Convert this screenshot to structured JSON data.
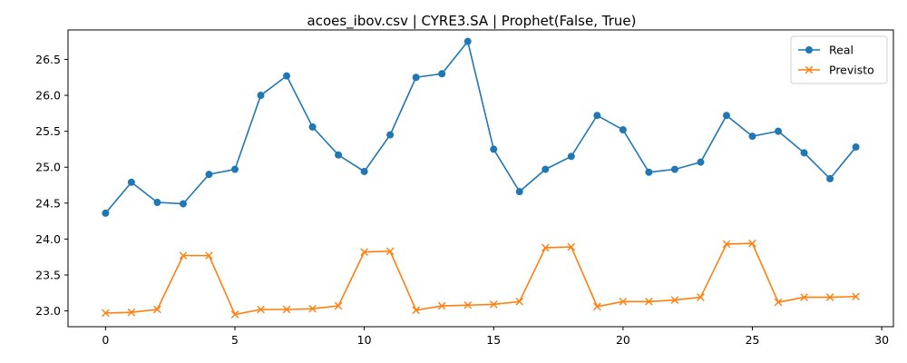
{
  "chart_data": {
    "type": "line",
    "title": "acoes_ibov.csv | CYRE3.SA | Prophet(False, True)",
    "xlabel": "",
    "ylabel": "",
    "xlim": [
      -1.45,
      30.45
    ],
    "ylim": [
      22.78,
      26.91
    ],
    "xticks": [
      0,
      5,
      10,
      15,
      20,
      25,
      30
    ],
    "yticks": [
      23.0,
      23.5,
      24.0,
      24.5,
      25.0,
      25.5,
      26.0,
      26.5
    ],
    "grid": false,
    "legend_position": "top-right",
    "x": [
      0,
      1,
      2,
      3,
      4,
      5,
      6,
      7,
      8,
      9,
      10,
      11,
      12,
      13,
      14,
      15,
      16,
      17,
      18,
      19,
      20,
      21,
      22,
      23,
      24,
      25,
      26,
      27,
      28,
      29
    ],
    "series": [
      {
        "name": "Real",
        "color": "#1f77b4",
        "marker": "circle",
        "values": [
          24.36,
          24.79,
          24.51,
          24.49,
          24.9,
          24.97,
          26.0,
          26.27,
          25.56,
          25.17,
          24.94,
          25.45,
          26.25,
          26.3,
          26.75,
          25.25,
          24.66,
          24.97,
          25.15,
          25.72,
          25.52,
          24.93,
          24.97,
          25.07,
          25.72,
          25.43,
          25.5,
          25.2,
          24.84,
          25.28
        ]
      },
      {
        "name": "Previsto",
        "color": "#ff7f0e",
        "marker": "x",
        "values": [
          22.97,
          22.98,
          23.02,
          23.77,
          23.77,
          22.95,
          23.02,
          23.02,
          23.03,
          23.07,
          23.82,
          23.83,
          23.01,
          23.07,
          23.08,
          23.09,
          23.13,
          23.88,
          23.89,
          23.06,
          23.13,
          23.13,
          23.15,
          23.19,
          23.93,
          23.94,
          23.12,
          23.19,
          23.19,
          23.2
        ]
      }
    ]
  }
}
